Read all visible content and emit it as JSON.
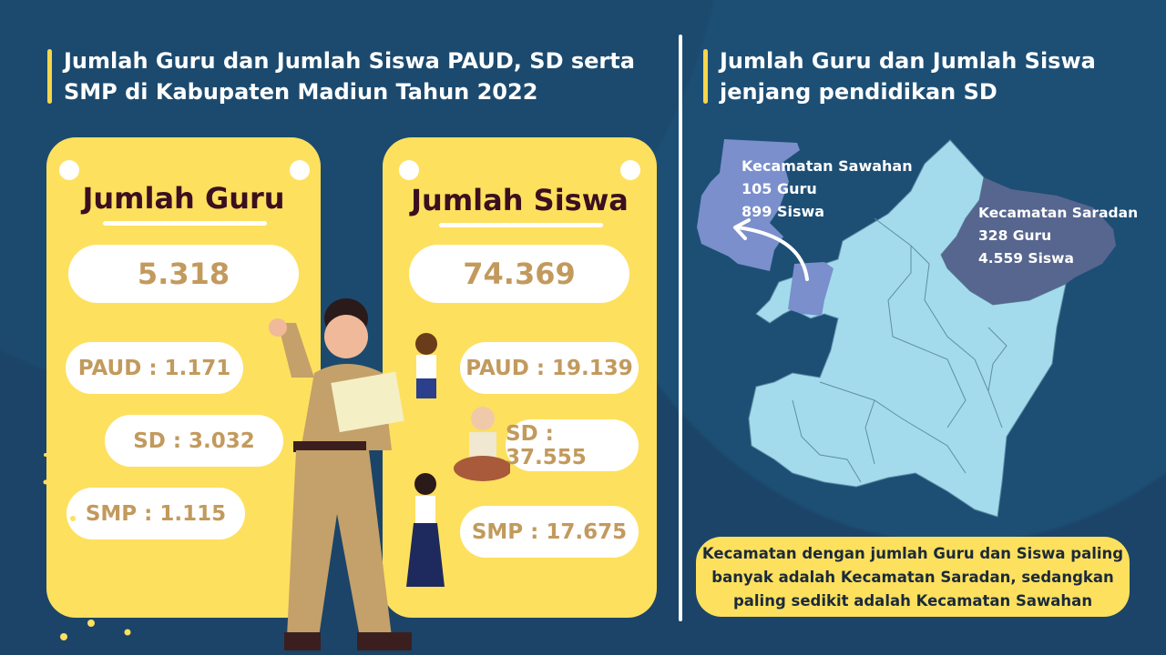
{
  "left": {
    "title": "Jumlah Guru dan Jumlah Siswa PAUD, SD serta SMP di Kabupaten Madiun Tahun 2022",
    "guru": {
      "heading": "Jumlah Guru",
      "total": "5.318",
      "paud": "PAUD : 1.171",
      "sd": "SD : 3.032",
      "smp": "SMP : 1.115"
    },
    "siswa": {
      "heading": "Jumlah Siswa",
      "total": "74.369",
      "paud": "PAUD : 19.139",
      "sd": "SD : 37.555",
      "smp": "SMP : 17.675"
    }
  },
  "right": {
    "title": "Jumlah Guru dan Jumlah Siswa jenjang pendidikan SD",
    "sawahan": {
      "name": "Kecamatan Sawahan",
      "guru": "105 Guru",
      "siswa": "899 Siswa"
    },
    "saradan": {
      "name": "Kecamatan Saradan",
      "guru": "328 Guru",
      "siswa": "4.559 Siswa"
    },
    "note": "Kecamatan dengan jumlah Guru dan Siswa paling banyak adalah Kecamatan Saradan, sedangkan paling sedikit adalah Kecamatan Sawahan"
  },
  "colors": {
    "background": "#1b4468",
    "card": "#fde05e",
    "accent": "#f7d54c",
    "value_text": "#c29a5d",
    "map": "#a3dbec",
    "saradan": "#57668f",
    "sawahan": "#7a8fcb"
  }
}
